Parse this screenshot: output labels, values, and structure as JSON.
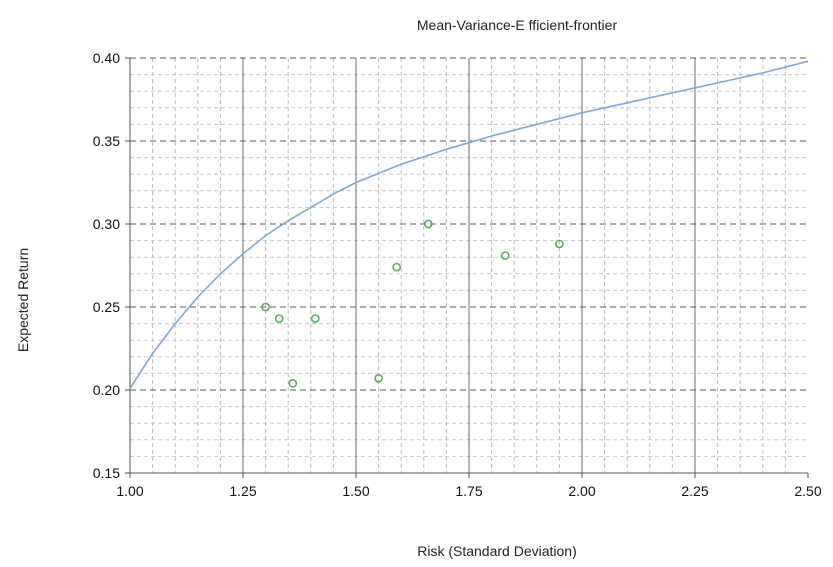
{
  "chart_data": {
    "type": "scatter",
    "title": "Mean-Variance-E fficient-frontier",
    "xlabel": "Risk (Standard Deviation)",
    "ylabel": "Expected Return",
    "xlim": [
      1.0,
      2.5
    ],
    "ylim": [
      0.15,
      0.4
    ],
    "x_ticks": [
      "1.00",
      "1.25",
      "1.50",
      "1.75",
      "2.00",
      "2.25",
      "2.50"
    ],
    "y_ticks": [
      "0.15",
      "0.20",
      "0.25",
      "0.30",
      "0.35",
      "0.40"
    ],
    "grid": true,
    "series": [
      {
        "kind": "line",
        "color": "#7da7d9",
        "x": [
          1.0,
          1.05,
          1.1,
          1.15,
          1.2,
          1.25,
          1.3,
          1.35,
          1.4,
          1.45,
          1.5,
          1.6,
          1.7,
          1.8,
          1.9,
          2.0,
          2.1,
          2.2,
          2.3,
          2.4,
          2.5
        ],
        "y": [
          0.201,
          0.222,
          0.24,
          0.256,
          0.27,
          0.282,
          0.293,
          0.302,
          0.31,
          0.318,
          0.325,
          0.336,
          0.345,
          0.353,
          0.36,
          0.367,
          0.373,
          0.379,
          0.385,
          0.391,
          0.398
        ]
      },
      {
        "kind": "scatter",
        "color": "#5aa95a",
        "x": [
          1.3,
          1.33,
          1.36,
          1.41,
          1.55,
          1.59,
          1.66,
          1.83,
          1.95
        ],
        "y": [
          0.25,
          0.243,
          0.204,
          0.243,
          0.207,
          0.274,
          0.3,
          0.281,
          0.288
        ]
      }
    ]
  }
}
